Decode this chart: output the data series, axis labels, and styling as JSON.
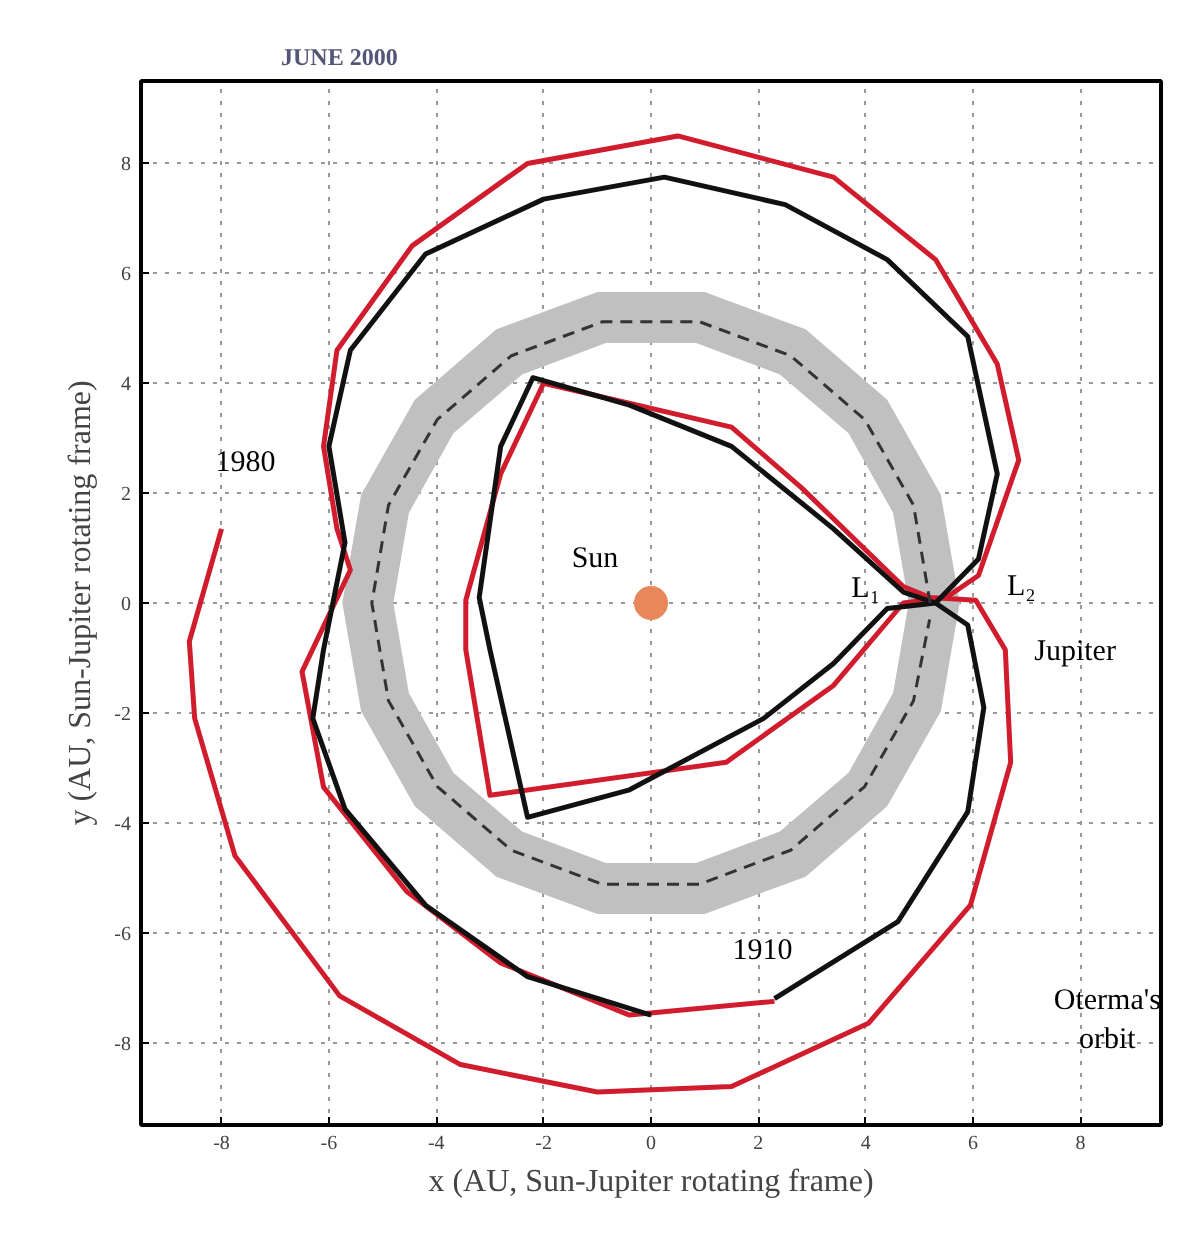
{
  "chart_data": {
    "type": "line",
    "title": "JUNE 2000",
    "xlabel": "x (AU, Sun-Jupiter rotating frame)",
    "ylabel": "y (AU, Sun-Jupiter rotating frame)",
    "xlim": [
      -9.5,
      9.5
    ],
    "ylim": [
      -9.5,
      9.5
    ],
    "xticks": [
      -8,
      -6,
      -4,
      -2,
      0,
      2,
      4,
      6,
      8
    ],
    "yticks": [
      -8,
      -6,
      -4,
      -2,
      0,
      2,
      4,
      6,
      8
    ],
    "grid": true,
    "line_style": "solid",
    "series": [
      {
        "type": "area",
        "color": "#c0c0c0",
        "x": [
          5.75,
          5.4,
          4.4,
          2.88,
          1.0,
          -1.0,
          -2.88,
          -4.4,
          -5.4,
          -5.75,
          -5.4,
          -4.4,
          -2.88,
          -1.0,
          1.0,
          2.88,
          4.4,
          5.4,
          5.75,
          4.8,
          4.51,
          3.68,
          2.4,
          0.84,
          -0.84,
          -2.4,
          -3.68,
          -4.51,
          -4.8,
          -4.51,
          -3.68,
          -2.4,
          -0.84,
          0.84,
          2.4,
          3.68,
          4.51,
          4.8
        ],
        "values": [
          0,
          1.97,
          3.7,
          4.98,
          5.66,
          5.66,
          4.98,
          3.7,
          1.97,
          0,
          -1.97,
          -3.7,
          -4.98,
          -5.66,
          -5.66,
          -4.98,
          -3.7,
          -1.97,
          0,
          0,
          -1.64,
          -3.09,
          -4.16,
          -4.73,
          -4.73,
          -4.16,
          -3.09,
          -1.64,
          0,
          1.64,
          3.09,
          4.16,
          4.73,
          4.73,
          4.16,
          3.09,
          1.64,
          0
        ]
      },
      {
        "color": "#333333",
        "line_style": "dashed",
        "x": [
          5.2,
          4.89,
          3.98,
          2.6,
          0.9,
          -0.9,
          -2.6,
          -3.98,
          -4.89,
          -5.2,
          -4.89,
          -3.98,
          -2.6,
          -0.9,
          0.9,
          2.6,
          3.98,
          4.89,
          5.19
        ],
        "values": [
          0,
          1.78,
          3.34,
          4.5,
          5.12,
          5.12,
          4.5,
          3.34,
          1.78,
          0,
          -1.78,
          -3.34,
          -4.5,
          -5.12,
          -5.12,
          -4.5,
          -3.34,
          -1.78,
          -0.3
        ]
      },
      {
        "color": "#111111",
        "x": [
          2.3,
          4.6,
          5.9,
          6.2,
          5.9,
          5.3,
          4.7,
          3.4,
          1.5,
          -0.4,
          -2.2,
          -2.8,
          -3.2,
          -3.0,
          -2.3,
          -0.4,
          2.1,
          3.4,
          4.4,
          5.3,
          6.1,
          6.45,
          5.9,
          4.4,
          2.5,
          0.25,
          -2.0,
          -4.2,
          -5.6,
          -6.0,
          -5.7,
          -6.1,
          -6.3,
          -5.7,
          -4.2,
          -2.3,
          0
        ],
        "values": [
          -7.2,
          -5.8,
          -3.8,
          -1.9,
          -0.4,
          0,
          0.2,
          1.35,
          2.85,
          3.6,
          4.1,
          2.85,
          0.1,
          -0.85,
          -3.9,
          -3.4,
          -2.1,
          -1.1,
          -0.1,
          0,
          0.8,
          2.35,
          4.85,
          6.25,
          7.25,
          7.75,
          7.35,
          6.35,
          4.6,
          2.85,
          1.1,
          -0.85,
          -2.1,
          -3.75,
          -5.5,
          -6.8,
          -7.5
        ]
      },
      {
        "color": "#d01c2c",
        "x": [
          -8.0,
          -8.6,
          -8.5,
          -7.75,
          -5.8,
          -3.55,
          -1.0,
          1.5,
          4.05,
          5.95,
          6.7,
          6.6,
          6.05,
          5.2,
          4.7,
          2.8,
          1.5,
          -2.0,
          -2.8,
          -3.45,
          -3.45,
          -3.0,
          1.4,
          3.4,
          4.7,
          5.5,
          6.1,
          6.85,
          6.45,
          5.3,
          3.4,
          0.5,
          -2.3,
          -4.45,
          -5.85,
          -6.1,
          -5.85,
          -5.6,
          -6.5,
          -6.1,
          -4.55,
          -2.8,
          -0.4,
          2.3
        ],
        "values": [
          1.35,
          -0.7,
          -2.1,
          -4.6,
          -7.15,
          -8.4,
          -8.9,
          -8.8,
          -7.65,
          -5.5,
          -2.9,
          -0.85,
          0.05,
          0.1,
          0.3,
          2.1,
          3.2,
          4.0,
          2.35,
          0.05,
          -0.85,
          -3.5,
          -2.9,
          -1.5,
          0,
          0.1,
          0.5,
          2.6,
          4.35,
          6.25,
          7.75,
          8.5,
          8.0,
          6.5,
          4.6,
          2.85,
          1.35,
          0.6,
          -1.25,
          -3.35,
          -5.25,
          -6.55,
          -7.5,
          -7.25
        ]
      },
      {
        "type": "scatter",
        "color": "#e8885a",
        "marker": "circle",
        "x": [
          0
        ],
        "values": [
          0
        ]
      }
    ],
    "annotations": [
      {
        "text": "Sun",
        "x": 0,
        "y": 0
      },
      "L₁",
      "L₂",
      "Jupiter",
      {
        "text": "1980",
        "x": -8.0,
        "y": 1.35
      },
      {
        "text": "1910",
        "x": 2.3,
        "y": -7.2
      },
      "Oterma's\norbit"
    ]
  }
}
